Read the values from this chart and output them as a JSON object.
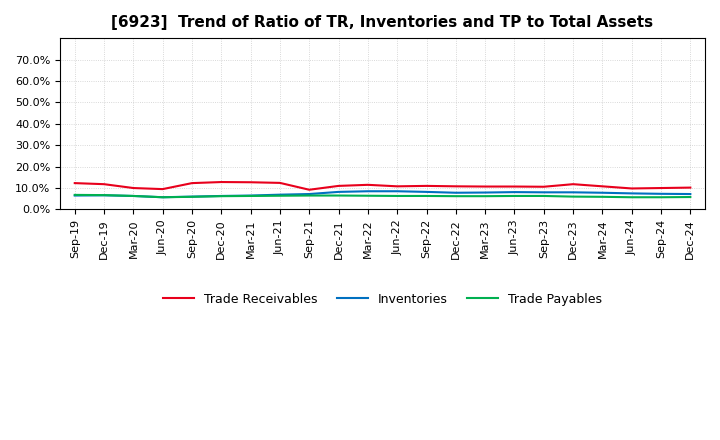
{
  "title": "[6923]  Trend of Ratio of TR, Inventories and TP to Total Assets",
  "x_labels": [
    "Sep-19",
    "Dec-19",
    "Mar-20",
    "Jun-20",
    "Sep-20",
    "Dec-20",
    "Mar-21",
    "Jun-21",
    "Sep-21",
    "Dec-21",
    "Mar-22",
    "Jun-22",
    "Sep-22",
    "Dec-22",
    "Mar-23",
    "Jun-23",
    "Sep-23",
    "Dec-23",
    "Mar-24",
    "Jun-24",
    "Sep-24",
    "Dec-24"
  ],
  "trade_receivables": [
    0.123,
    0.118,
    0.1,
    0.095,
    0.123,
    0.128,
    0.127,
    0.124,
    0.092,
    0.11,
    0.115,
    0.108,
    0.11,
    0.108,
    0.107,
    0.107,
    0.106,
    0.118,
    0.108,
    0.098,
    0.1,
    0.102
  ],
  "inventories": [
    0.065,
    0.066,
    0.063,
    0.057,
    0.06,
    0.063,
    0.065,
    0.069,
    0.072,
    0.082,
    0.085,
    0.085,
    0.082,
    0.078,
    0.079,
    0.081,
    0.08,
    0.08,
    0.078,
    0.075,
    0.073,
    0.072
  ],
  "trade_payables": [
    0.068,
    0.067,
    0.063,
    0.057,
    0.059,
    0.062,
    0.063,
    0.064,
    0.065,
    0.065,
    0.064,
    0.063,
    0.063,
    0.062,
    0.062,
    0.063,
    0.063,
    0.06,
    0.059,
    0.057,
    0.057,
    0.058
  ],
  "tr_color": "#e8001c",
  "inv_color": "#0070c0",
  "tp_color": "#00b050",
  "ylim_min": 0.0,
  "ylim_max": 0.8,
  "yticks": [
    0.0,
    0.1,
    0.2,
    0.3,
    0.4,
    0.5,
    0.6,
    0.7
  ],
  "legend_labels": [
    "Trade Receivables",
    "Inventories",
    "Trade Payables"
  ],
  "bg_color": "#ffffff",
  "plot_bg_color": "#ffffff",
  "title_fontsize": 11,
  "tick_fontsize": 8,
  "legend_fontsize": 9,
  "linewidth": 1.5,
  "grid_color": "#aaaaaa",
  "grid_alpha": 0.6,
  "grid_linestyle": ":"
}
